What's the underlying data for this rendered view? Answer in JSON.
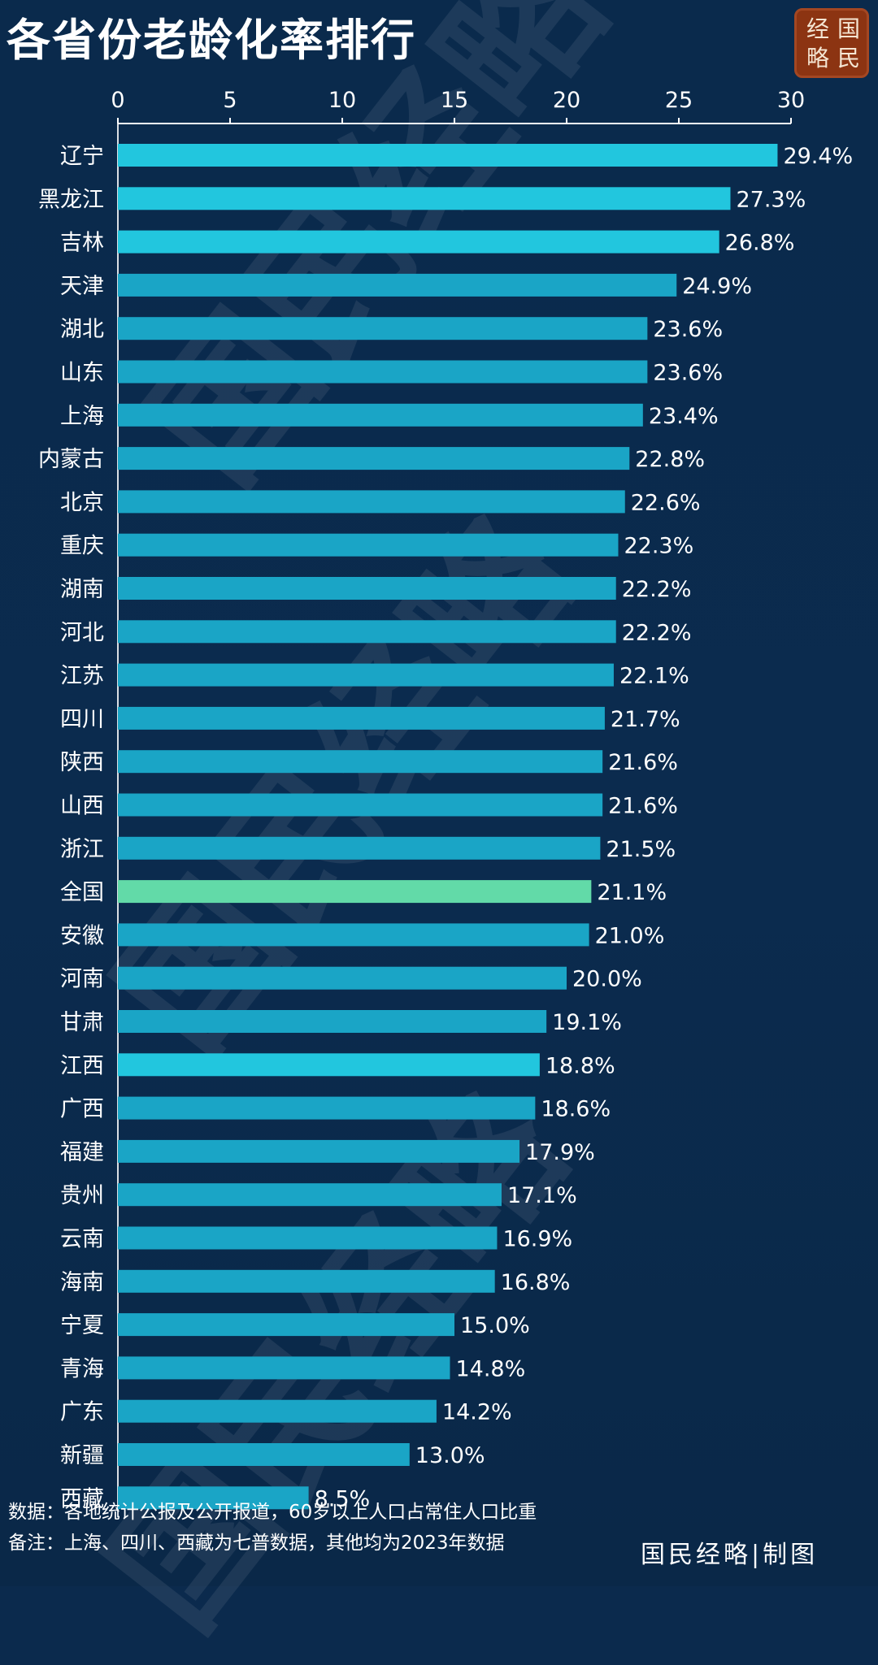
{
  "header": {
    "title": "各省份老龄化率排行",
    "seal_chars": [
      "经",
      "国",
      "略",
      "民"
    ]
  },
  "colors": {
    "background": "#0b2a4d",
    "bar_bright": "#22c6de",
    "bar_normal": "#1aa5c6",
    "bar_national": "#62daa8"
  },
  "chart_data": {
    "type": "bar",
    "orientation": "horizontal",
    "title": "各省份老龄化率排行",
    "xlim": [
      0,
      30
    ],
    "x_ticks": [
      "0",
      "5",
      "10",
      "15",
      "20",
      "25",
      "30"
    ],
    "x_tick_values": [
      0,
      5,
      10,
      15,
      20,
      25,
      30
    ],
    "grid": false,
    "categories": [
      "辽宁",
      "黑龙江",
      "吉林",
      "天津",
      "湖北",
      "山东",
      "上海",
      "内蒙古",
      "北京",
      "重庆",
      "湖南",
      "河北",
      "江苏",
      "四川",
      "陕西",
      "山西",
      "浙江",
      "全国",
      "安徽",
      "河南",
      "甘肃",
      "江西",
      "广西",
      "福建",
      "贵州",
      "云南",
      "海南",
      "宁夏",
      "青海",
      "广东",
      "新疆",
      "西藏"
    ],
    "values": [
      29.4,
      27.3,
      26.8,
      24.9,
      23.6,
      23.6,
      23.4,
      22.8,
      22.6,
      22.3,
      22.2,
      22.2,
      22.1,
      21.7,
      21.6,
      21.6,
      21.5,
      21.1,
      21.0,
      20.0,
      19.1,
      18.8,
      18.6,
      17.9,
      17.1,
      16.9,
      16.8,
      15.0,
      14.8,
      14.2,
      13.0,
      8.5
    ],
    "value_labels": [
      "29.4%",
      "27.3%",
      "26.8%",
      "24.9%",
      "23.6%",
      "23.6%",
      "23.4%",
      "22.8%",
      "22.6%",
      "22.3%",
      "22.2%",
      "22.2%",
      "22.1%",
      "21.7%",
      "21.6%",
      "21.6%",
      "21.5%",
      "21.1%",
      "21.0%",
      "20.0%",
      "19.1%",
      "18.8%",
      "18.6%",
      "17.9%",
      "17.1%",
      "16.9%",
      "16.8%",
      "15.0%",
      "14.8%",
      "14.2%",
      "13.0%",
      "8.5%"
    ],
    "highlight": {
      "national": "全国",
      "bright": [
        "辽宁",
        "黑龙江",
        "吉林",
        "江西"
      ]
    }
  },
  "footer": {
    "source": "数据：各地统计公报及公开报道，60岁以上人口占常住人口比重",
    "note": "备注：上海、四川、西藏为七普数据，其他均为2023年数据",
    "credit": "国民经略|制图"
  },
  "watermark": {
    "text": "国民经略"
  }
}
